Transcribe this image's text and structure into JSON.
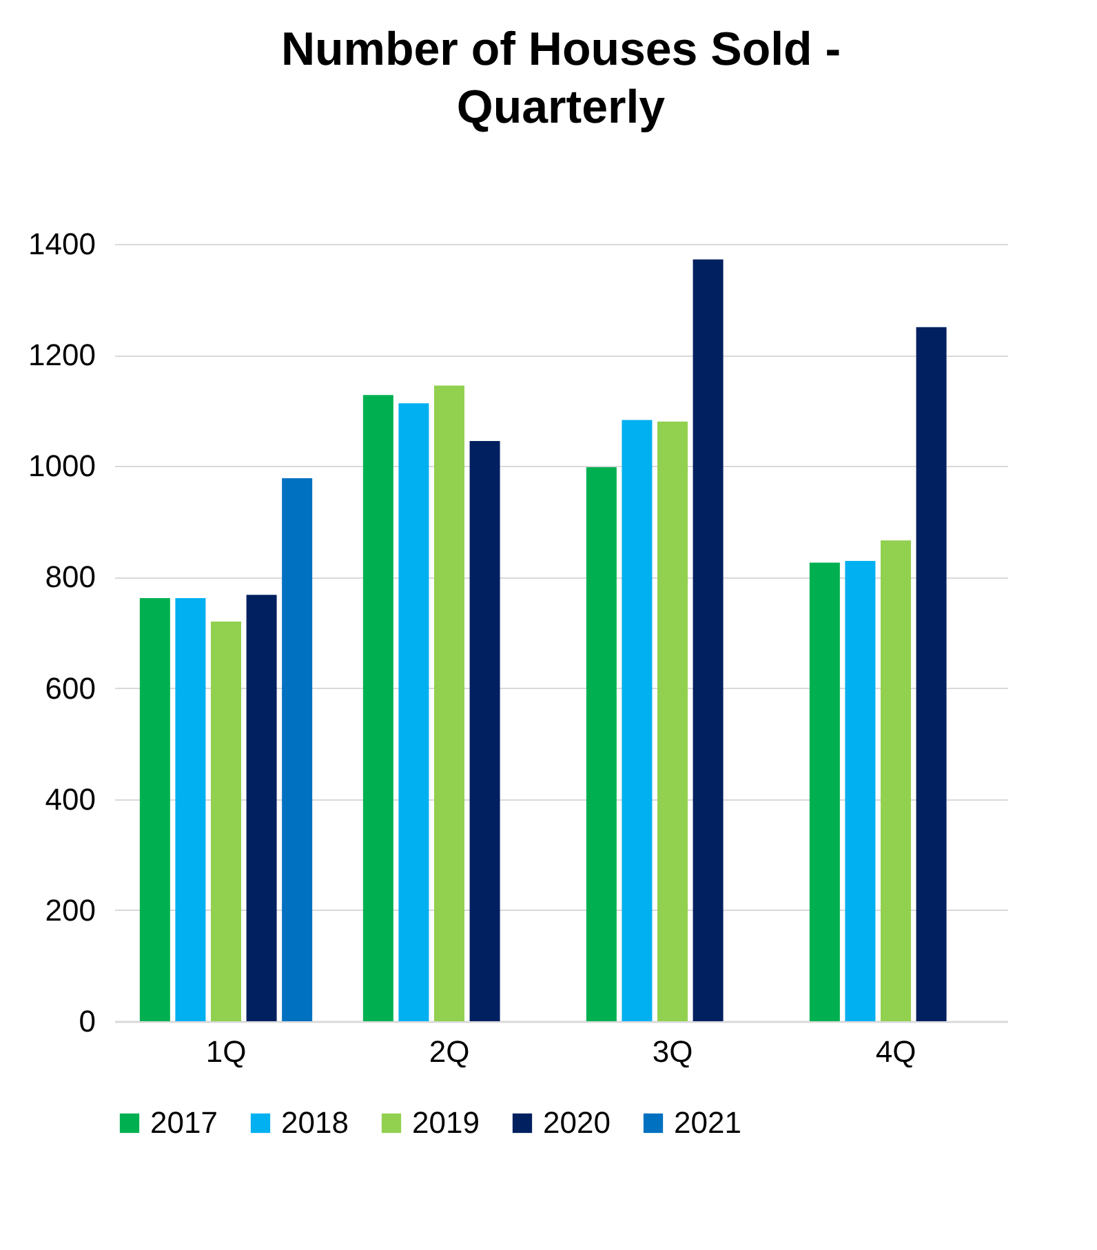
{
  "chart_data": {
    "type": "bar",
    "title": "Number of Houses Sold -\nQuarterly",
    "categories": [
      "1Q",
      "2Q",
      "3Q",
      "4Q"
    ],
    "series": [
      {
        "name": "2017",
        "color": "#00b050",
        "values": [
          762,
          1128,
          998,
          826
        ]
      },
      {
        "name": "2018",
        "color": "#00b0f0",
        "values": [
          762,
          1113,
          1083,
          829
        ]
      },
      {
        "name": "2019",
        "color": "#92d050",
        "values": [
          720,
          1145,
          1080,
          866
        ]
      },
      {
        "name": "2020",
        "color": "#002060",
        "values": [
          768,
          1045,
          1372,
          1250
        ]
      },
      {
        "name": "2021",
        "color": "#0070c0",
        "values": [
          978,
          null,
          null,
          null
        ]
      }
    ],
    "ylim": [
      0,
      1400
    ],
    "yticks": [
      0,
      200,
      400,
      600,
      800,
      1000,
      1200,
      1400
    ],
    "grid": "y",
    "legend": "bottom"
  }
}
